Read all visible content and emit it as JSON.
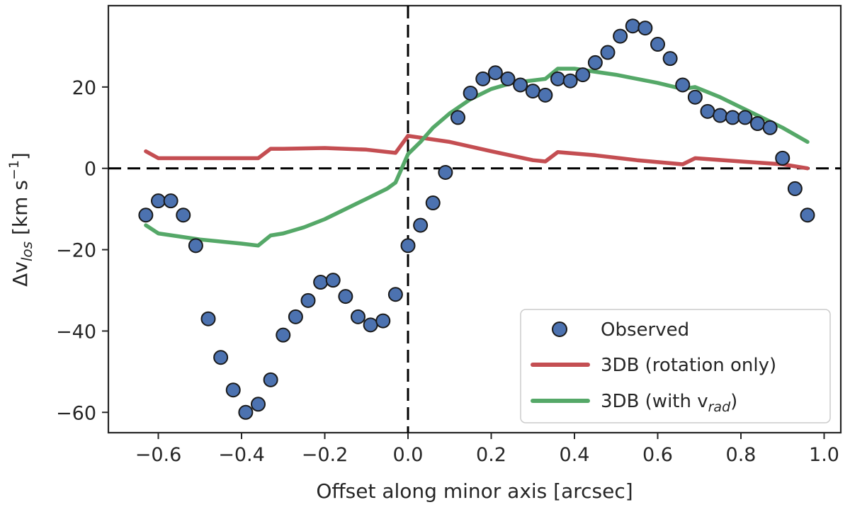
{
  "chart_data": {
    "type": "scatter",
    "title": "",
    "xlabel": "Offset along minor axis [arcsec]",
    "ylabel": {
      "prefix": "Δv",
      "subscript": "los",
      "units_open": " [km s",
      "units_exponent": "−1",
      "units_close": "]"
    },
    "xlim": [
      -0.72,
      1.04
    ],
    "ylim": [
      -65,
      40
    ],
    "xticks": [
      -0.6,
      -0.4,
      -0.2,
      0.0,
      0.2,
      0.4,
      0.6,
      0.8,
      1.0
    ],
    "xtick_labels": [
      "−0.6",
      "−0.4",
      "−0.2",
      "0.0",
      "0.2",
      "0.4",
      "0.6",
      "0.8",
      "1.0"
    ],
    "yticks": [
      -60,
      -40,
      -20,
      0,
      20
    ],
    "ytick_labels": [
      "−60",
      "−40",
      "−20",
      "0",
      "20"
    ],
    "reference_lines": {
      "horizontal_y": 0,
      "vertical_x": 0
    },
    "legend_position": "lower-right",
    "series": [
      {
        "name": "Observed",
        "kind": "scatter",
        "color": "#4C72B0",
        "edge_color": "#1a1a1a",
        "x": [
          -0.63,
          -0.6,
          -0.57,
          -0.54,
          -0.51,
          -0.48,
          -0.45,
          -0.42,
          -0.39,
          -0.36,
          -0.33,
          -0.3,
          -0.27,
          -0.24,
          -0.21,
          -0.18,
          -0.15,
          -0.12,
          -0.09,
          -0.06,
          -0.03,
          0.0,
          0.03,
          0.06,
          0.09,
          0.12,
          0.15,
          0.18,
          0.21,
          0.24,
          0.27,
          0.3,
          0.33,
          0.36,
          0.39,
          0.42,
          0.45,
          0.48,
          0.51,
          0.54,
          0.57,
          0.6,
          0.63,
          0.66,
          0.69,
          0.72,
          0.75,
          0.78,
          0.81,
          0.84,
          0.87,
          0.9,
          0.93,
          0.96
        ],
        "y": [
          -11.5,
          -8.0,
          -8.0,
          -11.5,
          -19.0,
          -37.0,
          -46.5,
          -54.5,
          -60.0,
          -58.0,
          -52.0,
          -41.0,
          -36.5,
          -32.5,
          -28.0,
          -27.5,
          -31.5,
          -36.5,
          -38.5,
          -37.5,
          -31.0,
          -19.0,
          -14.0,
          -8.5,
          -1.0,
          12.5,
          18.5,
          22.0,
          23.5,
          22.0,
          20.5,
          19.0,
          18.0,
          22.0,
          21.5,
          23.0,
          26.0,
          28.5,
          32.5,
          35.0,
          34.5,
          30.5,
          27.0,
          20.5,
          17.5,
          14.0,
          13.0,
          12.5,
          12.5,
          11.0,
          10.0,
          2.5,
          -5.0,
          -11.5
        ]
      },
      {
        "name": "3DB (rotation only)",
        "kind": "line",
        "color": "#C44E52",
        "x": [
          -0.63,
          -0.6,
          -0.5,
          -0.4,
          -0.36,
          -0.33,
          -0.3,
          -0.2,
          -0.1,
          -0.03,
          0.0,
          0.1,
          0.2,
          0.3,
          0.33,
          0.36,
          0.45,
          0.55,
          0.66,
          0.69,
          0.8,
          0.9,
          0.96
        ],
        "y": [
          4.2,
          2.5,
          2.5,
          2.5,
          2.5,
          4.8,
          4.8,
          5.0,
          4.6,
          3.8,
          8.0,
          6.5,
          4.2,
          2.0,
          1.7,
          4.0,
          3.2,
          2.0,
          1.0,
          2.5,
          1.7,
          1.0,
          0.0
        ]
      },
      {
        "name": "3DB (with v",
        "name_subscript": "rad",
        "name_suffix": ")",
        "kind": "line",
        "color": "#55A868",
        "x": [
          -0.63,
          -0.6,
          -0.5,
          -0.4,
          -0.36,
          -0.33,
          -0.3,
          -0.25,
          -0.2,
          -0.15,
          -0.1,
          -0.05,
          -0.03,
          0.0,
          0.03,
          0.06,
          0.1,
          0.15,
          0.2,
          0.25,
          0.33,
          0.36,
          0.4,
          0.5,
          0.6,
          0.66,
          0.69,
          0.75,
          0.8,
          0.85,
          0.9,
          0.96
        ],
        "y": [
          -14.0,
          -16.0,
          -17.5,
          -18.5,
          -19.0,
          -16.5,
          -16.0,
          -14.5,
          -12.5,
          -10.0,
          -7.5,
          -5.0,
          -3.5,
          3.5,
          6.5,
          10.0,
          13.5,
          17.0,
          19.5,
          21.0,
          22.0,
          24.5,
          24.5,
          23.0,
          21.0,
          19.5,
          20.0,
          17.5,
          15.0,
          12.5,
          10.0,
          6.5
        ]
      }
    ]
  }
}
